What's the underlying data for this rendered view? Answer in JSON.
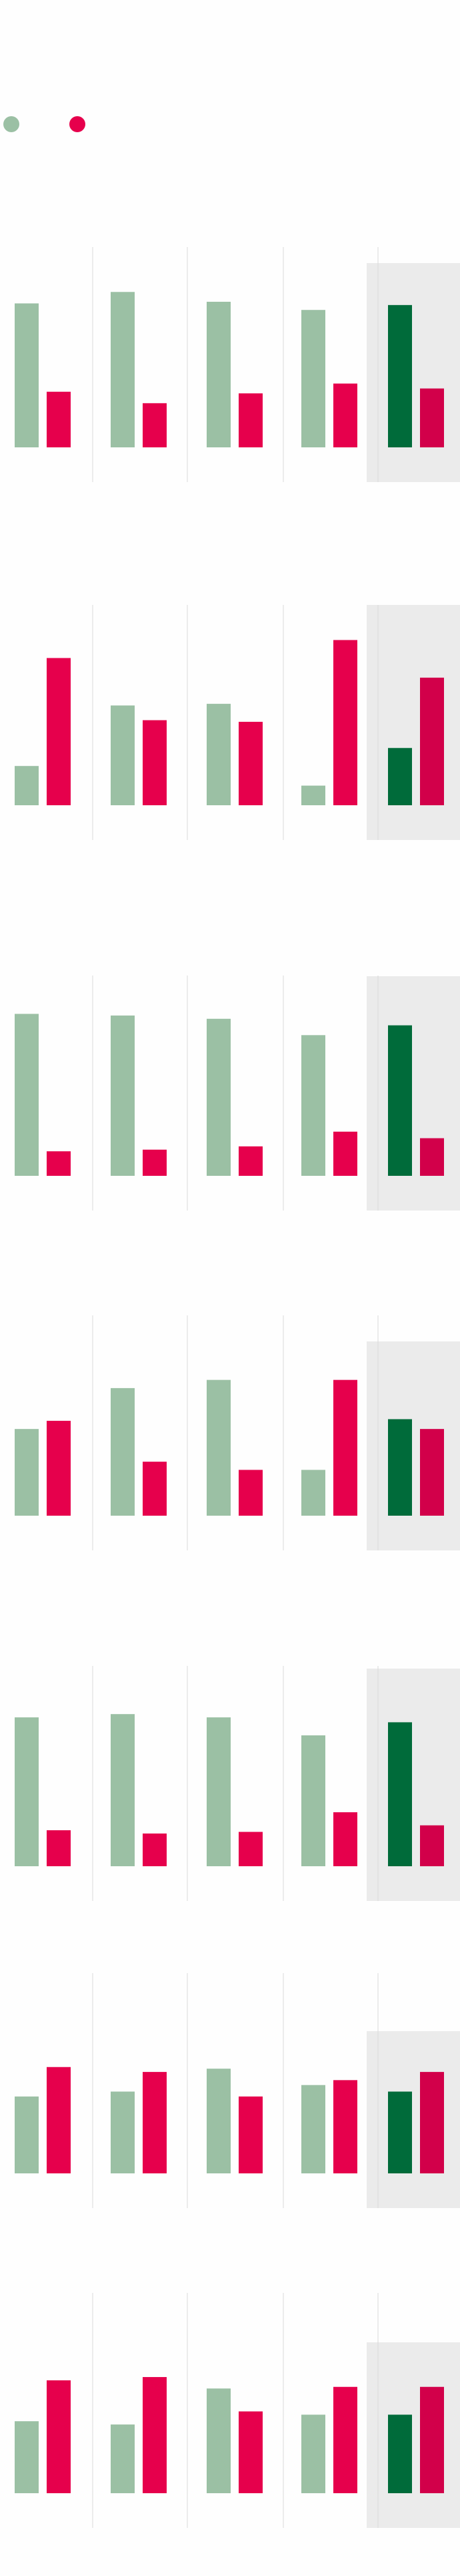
{
  "colors": {
    "background": "#fefefe",
    "series_a": "#9bc0a4",
    "series_b": "#e6004c",
    "series_a_highlight": "#006b3a",
    "series_b_highlight": "#d2004a",
    "highlight_panel": "#ebebeb",
    "divider": "#d9d9d9"
  },
  "legend": {
    "position": "top-left",
    "items": [
      {
        "series": 0
      },
      {
        "series": 1
      }
    ]
  },
  "chart_data": {
    "type": "bar",
    "description_note": "",
    "grid": false,
    "ylim": [
      0,
      100
    ],
    "series_count": 2,
    "highlight_group": 4,
    "groups_per_row": 5,
    "rows": [
      {
        "values": [
          [
            88,
            34
          ],
          [
            95,
            27
          ],
          [
            89,
            33
          ],
          [
            84,
            39
          ],
          [
            87,
            36
          ]
        ]
      },
      {
        "values": [
          [
            24,
            90
          ],
          [
            61,
            52
          ],
          [
            62,
            51
          ],
          [
            12,
            101
          ],
          [
            35,
            78
          ]
        ]
      },
      {
        "values": [
          [
            99,
            15
          ],
          [
            98,
            16
          ],
          [
            96,
            18
          ],
          [
            86,
            27
          ],
          [
            92,
            23
          ]
        ]
      },
      {
        "values": [
          [
            53,
            58
          ],
          [
            78,
            33
          ],
          [
            83,
            28
          ],
          [
            28,
            83
          ],
          [
            59,
            53
          ]
        ]
      },
      {
        "values": [
          [
            91,
            22
          ],
          [
            93,
            20
          ],
          [
            91,
            21
          ],
          [
            80,
            33
          ],
          [
            88,
            25
          ]
        ]
      },
      {
        "values": [
          [
            47,
            65
          ],
          [
            50,
            62
          ],
          [
            64,
            47
          ],
          [
            54,
            57
          ],
          [
            50,
            62
          ]
        ]
      },
      {
        "values": [
          [
            44,
            69
          ],
          [
            42,
            71
          ],
          [
            64,
            50
          ],
          [
            48,
            65
          ],
          [
            48,
            65
          ]
        ]
      }
    ]
  }
}
